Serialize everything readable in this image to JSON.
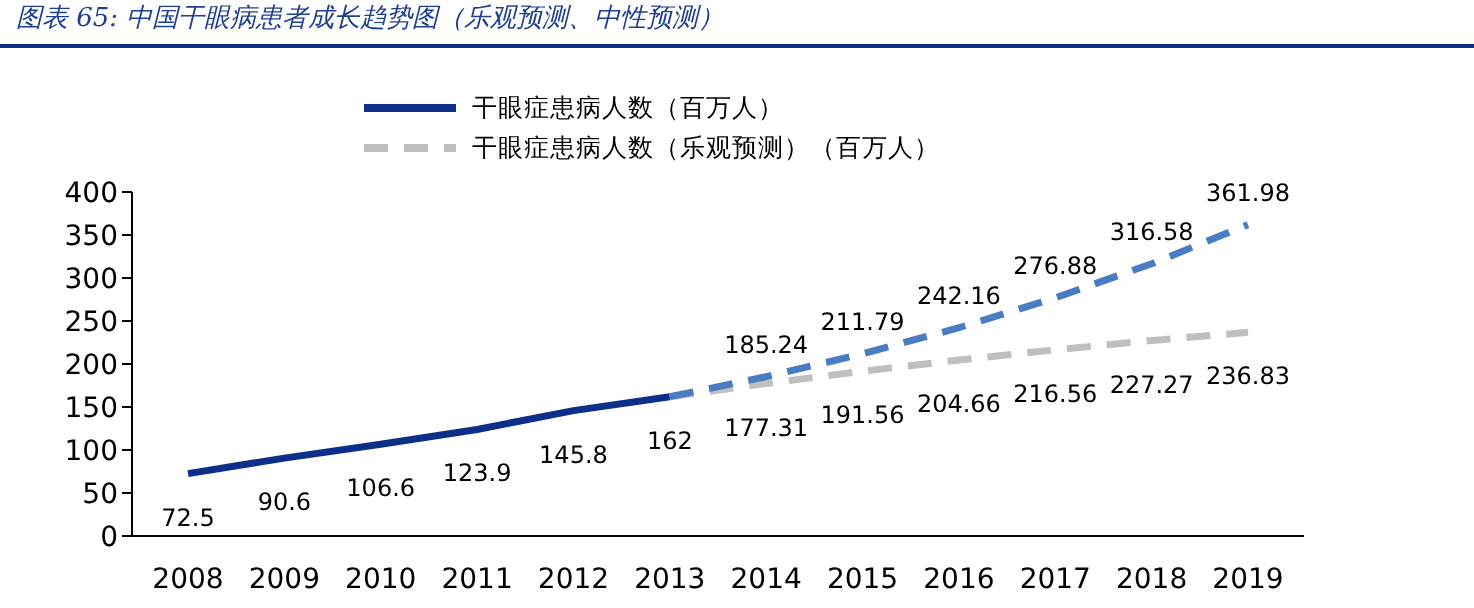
{
  "chart_data": {
    "type": "line",
    "title": "图表 65:  中国干眼病患者成长趋势图（乐观预测、中性预测）",
    "categories": [
      "2008",
      "2009",
      "2010",
      "2011",
      "2012",
      "2013",
      "2014",
      "2015",
      "2016",
      "2017",
      "2018",
      "2019"
    ],
    "series": [
      {
        "name": "干眼症患病人数（百万人）",
        "color": "#0d2f8a",
        "line_style": "solid",
        "values": [
          72.5,
          90.6,
          106.6,
          123.9,
          145.8,
          162,
          null,
          null,
          null,
          null,
          null,
          null
        ],
        "value_labels": [
          "72.5",
          "90.6",
          "106.6",
          "123.9",
          "145.8",
          "162",
          null,
          null,
          null,
          null,
          null,
          null
        ]
      },
      {
        "name": "干眼症患病人数（乐观预测）（百万人）",
        "color": "#bfbfbf",
        "line_style": "dashed",
        "values": [
          null,
          null,
          null,
          null,
          null,
          162,
          177.31,
          191.56,
          204.66,
          216.56,
          227.27,
          236.83
        ],
        "value_labels": [
          null,
          null,
          null,
          null,
          null,
          null,
          "177.31",
          "191.56",
          "204.66",
          "216.56",
          "227.27",
          "236.83"
        ]
      },
      {
        "color": "#4a7cc4",
        "line_style": "dashed",
        "values": [
          null,
          null,
          null,
          null,
          null,
          162,
          185.24,
          211.79,
          242.16,
          276.88,
          316.58,
          361.98
        ],
        "value_labels": [
          null,
          null,
          null,
          null,
          null,
          null,
          "185.24",
          "211.79",
          "242.16",
          "276.88",
          "316.58",
          "361.98"
        ]
      }
    ],
    "ylim": [
      0,
      400
    ],
    "yticks": [
      0,
      50,
      100,
      150,
      200,
      250,
      300,
      350,
      400
    ],
    "grid": false,
    "legend": "top",
    "marker": "none"
  }
}
